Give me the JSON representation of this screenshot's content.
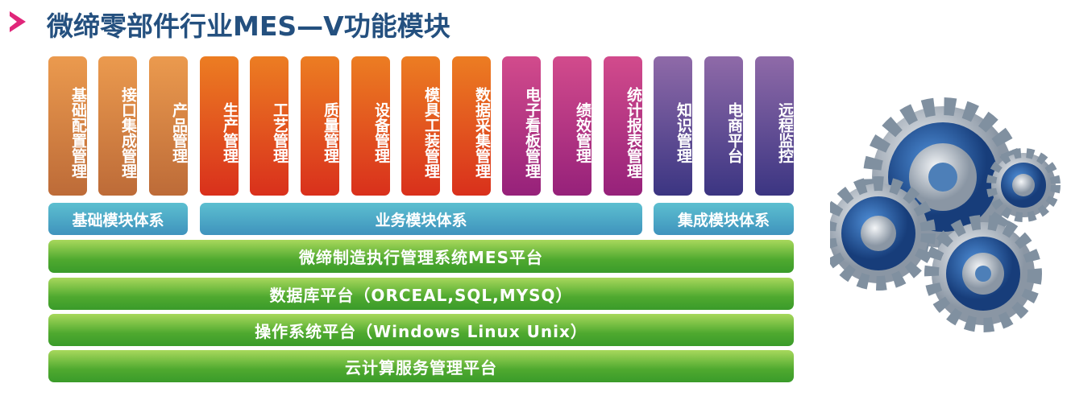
{
  "title": "微缔零部件行业MES—V功能模块",
  "modules": [
    "基础配置管理",
    "接口集成管理",
    "产品管理",
    "生产管理",
    "工艺管理",
    "质量管理",
    "设备管理",
    "模具工装管理",
    "数据采集管理",
    "电子看板管理",
    "绩效管理",
    "统计报表管理",
    "知识管理",
    "电商平台",
    "远程监控"
  ],
  "categories": [
    "基础模块体系",
    "业务模块体系",
    "集成模块体系"
  ],
  "platforms": [
    "微缔制造执行管理系统MES平台",
    "数据库平台（ORCEAL,SQL,MYSQ）",
    "操作系统平台（Windows Linux Unix）",
    "云计算服务管理平台"
  ],
  "colors": {
    "title": "#24507f",
    "base": "#d9854a",
    "business": "#e0501f",
    "business_alt": "#b52f83",
    "integration": "#5a4a92",
    "category": "#4fa8c6",
    "platform": "#5cb33a"
  }
}
